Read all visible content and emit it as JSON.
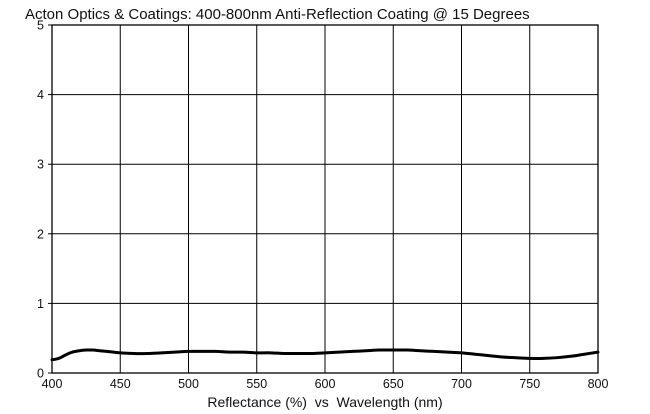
{
  "chart_data": {
    "type": "line",
    "title": "Acton Optics & Coatings: 400-800nm Anti-Reflection Coating @ 15 Degrees",
    "xlabel": "Reflectance (%)  vs  Wavelength (nm)",
    "ylabel": "",
    "xlim": [
      400,
      800
    ],
    "ylim": [
      0,
      5
    ],
    "xticks": [
      "400",
      "450",
      "500",
      "550",
      "600",
      "650",
      "700",
      "750",
      "800"
    ],
    "yticks": [
      "0",
      "1",
      "2",
      "3",
      "4",
      "5"
    ],
    "grid": true,
    "legend": "none",
    "colors": {
      "line": "#000000",
      "grid": "#000000",
      "text": "#111111"
    },
    "series": [
      {
        "x": [
          400,
          405,
          410,
          415,
          420,
          425,
          430,
          435,
          440,
          445,
          450,
          460,
          470,
          480,
          490,
          500,
          510,
          520,
          530,
          540,
          550,
          560,
          570,
          580,
          590,
          600,
          610,
          620,
          630,
          640,
          650,
          660,
          670,
          680,
          690,
          700,
          710,
          720,
          730,
          740,
          750,
          760,
          770,
          780,
          790,
          800
        ],
        "y": [
          0.19,
          0.21,
          0.26,
          0.3,
          0.32,
          0.33,
          0.33,
          0.32,
          0.31,
          0.3,
          0.29,
          0.28,
          0.28,
          0.29,
          0.3,
          0.31,
          0.31,
          0.31,
          0.3,
          0.3,
          0.29,
          0.29,
          0.28,
          0.28,
          0.28,
          0.29,
          0.3,
          0.31,
          0.32,
          0.33,
          0.33,
          0.33,
          0.32,
          0.31,
          0.3,
          0.29,
          0.27,
          0.25,
          0.23,
          0.22,
          0.21,
          0.21,
          0.22,
          0.24,
          0.27,
          0.3
        ]
      }
    ]
  }
}
